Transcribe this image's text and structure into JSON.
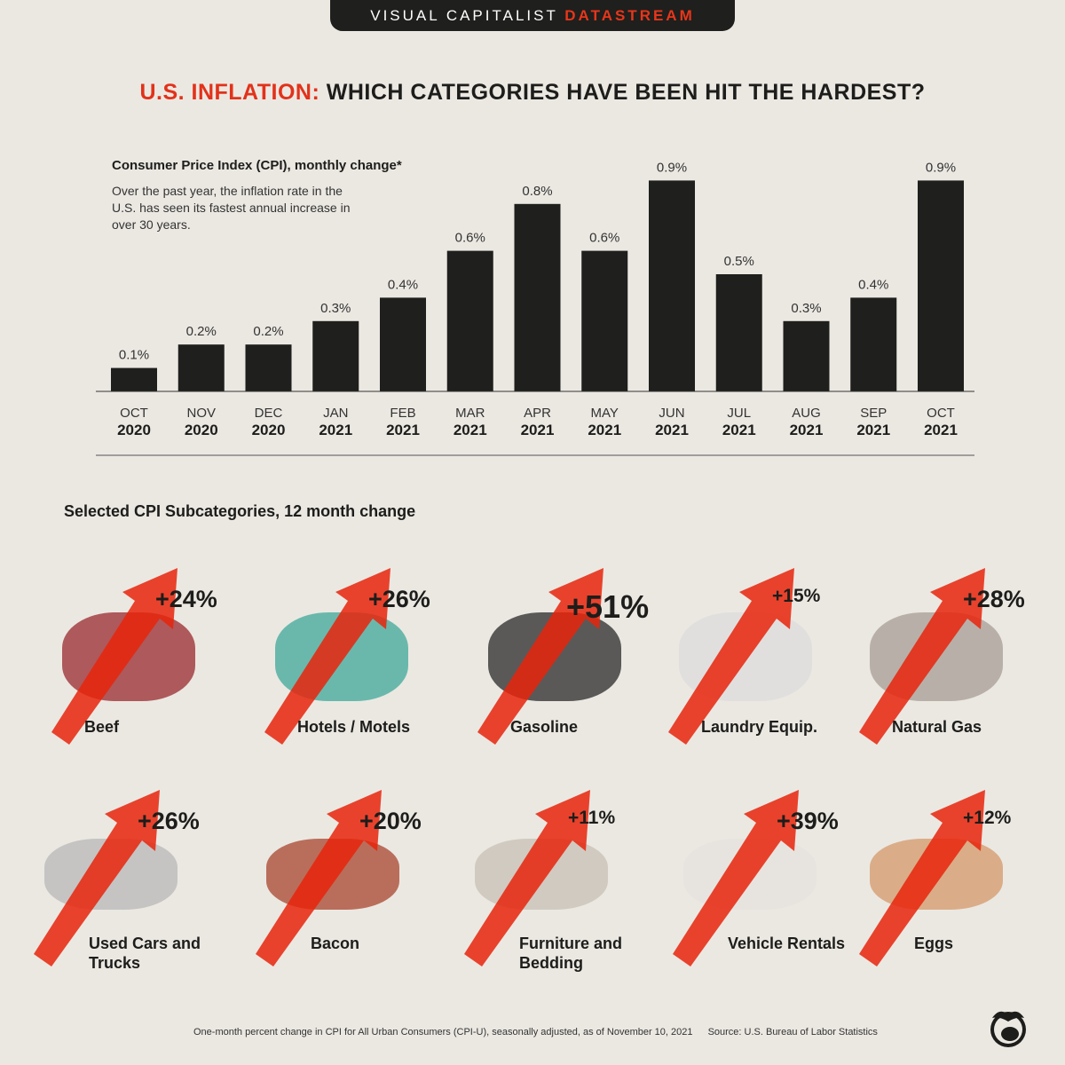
{
  "brand": {
    "prefix": "VISUAL CAPITALIST",
    "suffix": "DATASTREAM"
  },
  "title": {
    "highlight": "U.S. INFLATION:",
    "rest": " WHICH CATEGORIES HAVE BEEN HIT THE HARDEST?"
  },
  "colors": {
    "accent": "#e2321a",
    "bar": "#1f1f1d",
    "background": "#ebe8e2"
  },
  "chart_data": {
    "type": "bar",
    "title": "Consumer Price Index (CPI), monthly change*",
    "subtitle": "Over the past year, the inflation rate in the U.S. has seen its fastest annual increase in over 30 years.",
    "categories": [
      {
        "month": "OCT",
        "year": "2020"
      },
      {
        "month": "NOV",
        "year": "2020"
      },
      {
        "month": "DEC",
        "year": "2020"
      },
      {
        "month": "JAN",
        "year": "2021"
      },
      {
        "month": "FEB",
        "year": "2021"
      },
      {
        "month": "MAR",
        "year": "2021"
      },
      {
        "month": "APR",
        "year": "2021"
      },
      {
        "month": "MAY",
        "year": "2021"
      },
      {
        "month": "JUN",
        "year": "2021"
      },
      {
        "month": "JUL",
        "year": "2021"
      },
      {
        "month": "AUG",
        "year": "2021"
      },
      {
        "month": "SEP",
        "year": "2021"
      },
      {
        "month": "OCT",
        "year": "2021"
      }
    ],
    "values": [
      0.1,
      0.2,
      0.2,
      0.3,
      0.4,
      0.6,
      0.8,
      0.6,
      0.9,
      0.5,
      0.3,
      0.4,
      0.9
    ],
    "data_labels": [
      "0.1%",
      "0.2%",
      "0.2%",
      "0.3%",
      "0.4%",
      "0.6%",
      "0.8%",
      "0.6%",
      "0.9%",
      "0.5%",
      "0.3%",
      "0.4%",
      "0.9%"
    ],
    "unit": "%",
    "ylim": [
      0,
      1.0
    ],
    "grid": false
  },
  "subcategories": {
    "title": "Selected CPI Subcategories, 12 month change",
    "items": [
      {
        "label": "Beef",
        "change": "+24%",
        "value": 24,
        "icon": "steak-image"
      },
      {
        "label": "Hotels / Motels",
        "change": "+26%",
        "value": 26,
        "icon": "hotel-keycard-image"
      },
      {
        "label": "Gasoline",
        "change": "+51%",
        "value": 51,
        "icon": "gas-pump-nozzle-image"
      },
      {
        "label": "Laundry Equip.",
        "change": "+15%",
        "value": 15,
        "icon": "washing-machine-image"
      },
      {
        "label": "Natural Gas",
        "change": "+28%",
        "value": 28,
        "icon": "furnace-image"
      },
      {
        "label": "Used Cars and Trucks",
        "change": "+26%",
        "value": 26,
        "icon": "minivan-image"
      },
      {
        "label": "Bacon",
        "change": "+20%",
        "value": 20,
        "icon": "bacon-image"
      },
      {
        "label": "Furniture and Bedding",
        "change": "+11%",
        "value": 11,
        "icon": "sofa-image"
      },
      {
        "label": "Vehicle Rentals",
        "change": "+39%",
        "value": 39,
        "icon": "suv-image"
      },
      {
        "label": "Eggs",
        "change": "+12%",
        "value": 12,
        "icon": "egg-carton-image"
      }
    ]
  },
  "footer": {
    "note": "One-month percent change in CPI for All Urban Consumers (CPI-U), seasonally adjusted, as of November 10, 2021",
    "source": "Source: U.S. Bureau of Labor Statistics"
  }
}
